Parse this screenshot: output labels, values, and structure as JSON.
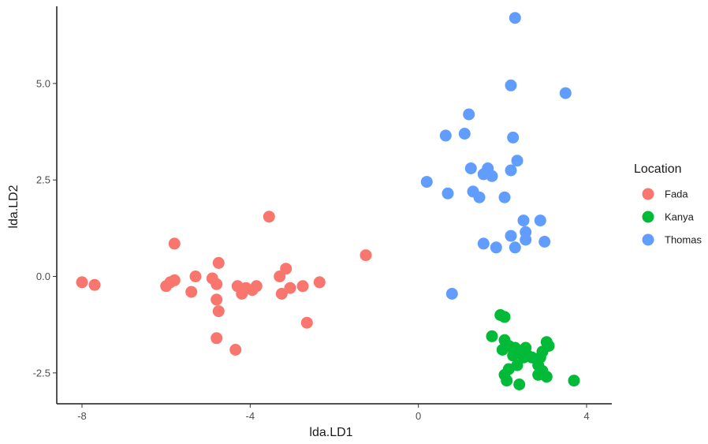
{
  "chart_data": {
    "type": "scatter",
    "xlabel": "lda.LD1",
    "ylabel": "lda.LD2",
    "xlim": [
      -8.6,
      4.6
    ],
    "ylim": [
      -3.3,
      7.0
    ],
    "x_ticks": [
      -8,
      -4,
      0,
      4
    ],
    "x_tick_labels": [
      "-8",
      "-4",
      "0",
      "4"
    ],
    "y_ticks": [
      -2.5,
      0,
      2.5,
      5
    ],
    "y_tick_labels": [
      "-2.5",
      "0.0",
      "2.5",
      "5.0"
    ],
    "grid": false,
    "legend": {
      "title": "Location",
      "placement": "right"
    },
    "series": [
      {
        "name": "Fada",
        "color": "#F8766D",
        "points": [
          [
            -8.0,
            -0.15
          ],
          [
            -7.7,
            -0.22
          ],
          [
            -6.0,
            -0.25
          ],
          [
            -5.9,
            -0.15
          ],
          [
            -5.8,
            -0.1
          ],
          [
            -5.8,
            0.85
          ],
          [
            -5.3,
            0.0
          ],
          [
            -5.4,
            -0.4
          ],
          [
            -4.9,
            -0.05
          ],
          [
            -4.8,
            -0.2
          ],
          [
            -4.75,
            0.35
          ],
          [
            -4.8,
            -0.6
          ],
          [
            -4.75,
            -0.9
          ],
          [
            -4.8,
            -1.6
          ],
          [
            -4.35,
            -1.9
          ],
          [
            -4.3,
            -0.25
          ],
          [
            -4.2,
            -0.45
          ],
          [
            -4.1,
            -0.3
          ],
          [
            -3.95,
            -0.35
          ],
          [
            -3.85,
            -0.25
          ],
          [
            -3.55,
            1.55
          ],
          [
            -3.3,
            0.0
          ],
          [
            -3.25,
            -0.45
          ],
          [
            -3.15,
            0.2
          ],
          [
            -3.05,
            -0.3
          ],
          [
            -2.75,
            -0.25
          ],
          [
            -2.65,
            -1.2
          ],
          [
            -2.35,
            -0.15
          ],
          [
            -1.25,
            0.55
          ]
        ]
      },
      {
        "name": "Kanya",
        "color": "#00BA38",
        "points": [
          [
            1.95,
            -1.0
          ],
          [
            2.05,
            -1.05
          ],
          [
            1.75,
            -1.55
          ],
          [
            2.05,
            -1.65
          ],
          [
            2.15,
            -1.8
          ],
          [
            2.3,
            -1.85
          ],
          [
            2.45,
            -1.95
          ],
          [
            2.55,
            -1.85
          ],
          [
            2.0,
            -1.9
          ],
          [
            2.25,
            -2.05
          ],
          [
            2.5,
            -2.1
          ],
          [
            2.6,
            -2.05
          ],
          [
            2.35,
            -2.3
          ],
          [
            2.15,
            -2.4
          ],
          [
            2.05,
            -2.55
          ],
          [
            2.1,
            -2.7
          ],
          [
            2.4,
            -2.8
          ],
          [
            2.95,
            -1.95
          ],
          [
            2.9,
            -2.1
          ],
          [
            2.85,
            -2.3
          ],
          [
            2.95,
            -2.45
          ],
          [
            3.05,
            -1.7
          ],
          [
            3.1,
            -1.8
          ],
          [
            2.85,
            -2.55
          ],
          [
            3.05,
            -2.6
          ],
          [
            3.7,
            -2.7
          ],
          [
            2.7,
            -2.1
          ]
        ]
      },
      {
        "name": "Thomas",
        "color": "#619CFF",
        "points": [
          [
            2.3,
            6.7
          ],
          [
            2.2,
            4.95
          ],
          [
            3.5,
            4.75
          ],
          [
            1.2,
            4.2
          ],
          [
            0.65,
            3.65
          ],
          [
            1.1,
            3.7
          ],
          [
            2.25,
            3.6
          ],
          [
            1.25,
            2.8
          ],
          [
            1.65,
            2.8
          ],
          [
            1.55,
            2.65
          ],
          [
            1.75,
            2.6
          ],
          [
            2.2,
            2.75
          ],
          [
            2.35,
            3.0
          ],
          [
            0.2,
            2.45
          ],
          [
            0.7,
            2.15
          ],
          [
            1.3,
            2.2
          ],
          [
            1.45,
            2.05
          ],
          [
            2.05,
            2.05
          ],
          [
            2.5,
            1.45
          ],
          [
            2.9,
            1.45
          ],
          [
            2.55,
            1.15
          ],
          [
            2.2,
            1.05
          ],
          [
            2.55,
            0.95
          ],
          [
            3.0,
            0.9
          ],
          [
            1.55,
            0.85
          ],
          [
            1.85,
            0.75
          ],
          [
            2.3,
            0.75
          ],
          [
            0.8,
            -0.45
          ]
        ]
      }
    ]
  }
}
